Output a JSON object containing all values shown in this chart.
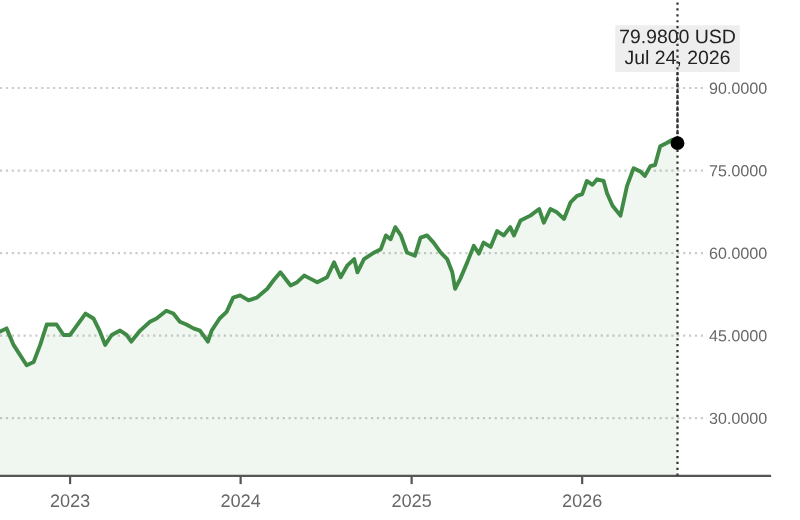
{
  "chart_data": {
    "type": "area",
    "x": [
      "2022-08-04",
      "2022-08-18",
      "2022-09-02",
      "2022-09-30",
      "2022-10-15",
      "2022-10-29",
      "2022-11-12",
      "2022-12-03",
      "2022-12-18",
      "2023-01-01",
      "2023-02-03",
      "2023-02-20",
      "2023-03-06",
      "2023-03-17",
      "2023-03-31",
      "2023-04-18",
      "2023-05-02",
      "2023-05-12",
      "2023-05-31",
      "2023-06-21",
      "2023-07-05",
      "2023-07-26",
      "2023-08-10",
      "2023-08-24",
      "2023-09-07",
      "2023-09-22",
      "2023-10-06",
      "2023-10-23",
      "2023-10-31",
      "2023-11-17",
      "2023-12-02",
      "2023-12-16",
      "2023-12-31",
      "2024-01-18",
      "2024-02-05",
      "2024-02-27",
      "2024-03-12",
      "2024-03-26",
      "2024-04-17",
      "2024-05-01",
      "2024-05-16",
      "2024-05-30",
      "2024-06-13",
      "2024-07-04",
      "2024-07-19",
      "2024-08-02",
      "2024-08-16",
      "2024-08-31",
      "2024-09-07",
      "2024-09-21",
      "2024-10-13",
      "2024-10-27",
      "2024-11-07",
      "2024-11-17",
      "2024-11-27",
      "2024-12-09",
      "2024-12-22",
      "2025-01-08",
      "2025-01-20",
      "2025-02-03",
      "2025-02-17",
      "2025-03-04",
      "2025-03-18",
      "2025-03-29",
      "2025-04-04",
      "2025-04-15",
      "2025-04-30",
      "2025-05-14",
      "2025-05-25",
      "2025-06-04",
      "2025-06-19",
      "2025-07-03",
      "2025-07-17",
      "2025-07-31",
      "2025-08-08",
      "2025-08-22",
      "2025-09-12",
      "2025-10-01",
      "2025-10-11",
      "2025-10-25",
      "2025-11-08",
      "2025-11-23",
      "2025-12-07",
      "2025-12-21",
      "2026-01-01",
      "2026-01-11",
      "2026-01-23",
      "2026-02-02",
      "2026-02-16",
      "2026-02-23",
      "2026-03-07",
      "2026-03-24",
      "2026-04-07",
      "2026-04-21",
      "2026-05-06",
      "2026-05-15",
      "2026-05-27",
      "2026-06-06",
      "2026-06-17",
      "2026-07-01",
      "2026-07-13",
      "2026-07-24"
    ],
    "series": [
      {
        "color": "#3f8a44",
        "values": [
          45.7,
          46.3,
          43.3,
          39.6,
          40.2,
          43.3,
          47.0,
          47.0,
          45.1,
          45.1,
          49.0,
          48.1,
          45.7,
          43.3,
          45.1,
          45.9,
          45.1,
          43.9,
          45.9,
          47.5,
          48.1,
          49.5,
          49.0,
          47.5,
          47.0,
          46.3,
          45.9,
          43.9,
          45.9,
          48.1,
          49.3,
          51.9,
          52.3,
          51.4,
          51.9,
          53.5,
          55.1,
          56.5,
          54.1,
          54.7,
          55.9,
          55.3,
          54.7,
          55.6,
          58.3,
          55.6,
          57.7,
          58.9,
          56.5,
          58.9,
          60.1,
          60.7,
          63.2,
          62.5,
          64.7,
          63.2,
          60.1,
          59.5,
          62.8,
          63.2,
          61.9,
          60.1,
          58.9,
          56.5,
          53.5,
          55.3,
          58.3,
          61.3,
          59.9,
          61.9,
          61.1,
          64.0,
          63.2,
          64.7,
          63.2,
          65.9,
          66.8,
          68.0,
          65.5,
          68.0,
          67.4,
          66.2,
          69.2,
          70.4,
          70.7,
          73.1,
          72.4,
          73.4,
          73.1,
          70.9,
          68.6,
          66.8,
          72.2,
          75.4,
          74.8,
          74.0,
          75.8,
          76.0,
          79.4,
          80.0,
          80.6,
          79.98
        ]
      }
    ],
    "xlim": [
      "2022-08-04",
      "2027-02-07"
    ],
    "xticks": [
      {
        "value": "2023-01-01",
        "label": "2023"
      },
      {
        "value": "2024-01-01",
        "label": "2024"
      },
      {
        "value": "2025-01-01",
        "label": "2025"
      },
      {
        "value": "2026-01-01",
        "label": "2026"
      }
    ],
    "ylim": [
      19.5,
      106
    ],
    "yticks": [
      {
        "value": 30,
        "label": "30.0000"
      },
      {
        "value": 45,
        "label": "45.0000"
      },
      {
        "value": 60,
        "label": "60.0000"
      },
      {
        "value": 75,
        "label": "75.0000"
      },
      {
        "value": 90,
        "label": "90.0000"
      }
    ],
    "grid": "y",
    "ref_lines": [
      {
        "axis": "x",
        "value": "2026-07-24",
        "color": "#333333",
        "line_style": "dotted"
      }
    ],
    "annotations": [
      {
        "text": "79.9800 USD\nJul 24, 2026",
        "x": "2026-07-24",
        "y": 79.98
      }
    ]
  }
}
